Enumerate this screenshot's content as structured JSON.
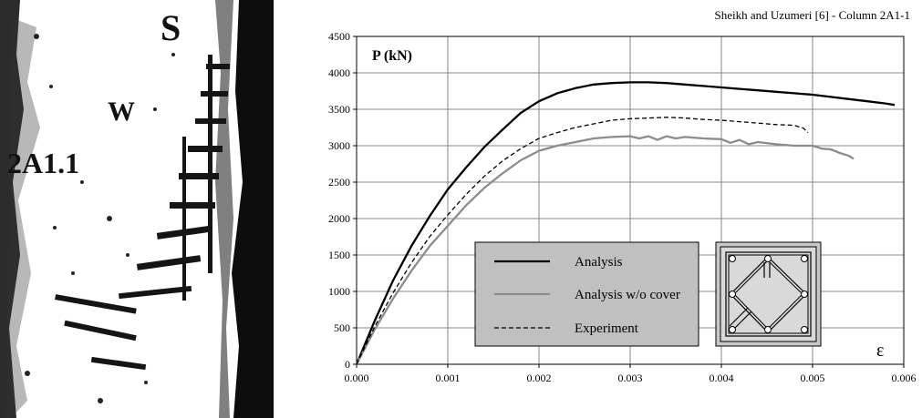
{
  "photo": {
    "labels": [
      "S",
      "W",
      "2A1.1"
    ]
  },
  "chart_data": {
    "type": "line",
    "title": "Sheikh and Uzumeri [6] - Column 2A1-1",
    "ylabel": "P (kN)",
    "xlabel": "ε",
    "xlim": [
      0,
      0.006
    ],
    "ylim": [
      0,
      4500
    ],
    "x_ticks": [
      "0.000",
      "0.001",
      "0.002",
      "0.003",
      "0.004",
      "0.005",
      "0.006"
    ],
    "y_ticks": [
      "0",
      "500",
      "1000",
      "1500",
      "2000",
      "2500",
      "3000",
      "3500",
      "4000",
      "4500"
    ],
    "grid": true,
    "legend_position": "bottom-center",
    "series": [
      {
        "name": "Analysis",
        "color": "#000000",
        "dash": "solid",
        "x": [
          0,
          0.0002,
          0.0004,
          0.0006,
          0.0008,
          0.001,
          0.0012,
          0.0014,
          0.0016,
          0.0018,
          0.002,
          0.0022,
          0.0024,
          0.0026,
          0.0028,
          0.003,
          0.0032,
          0.0034,
          0.0036,
          0.0038,
          0.004,
          0.0042,
          0.0044,
          0.0046,
          0.0048,
          0.005,
          0.0052,
          0.0054,
          0.0056,
          0.0058,
          0.0059
        ],
        "y": [
          0,
          600,
          1150,
          1620,
          2030,
          2400,
          2700,
          2980,
          3220,
          3450,
          3610,
          3720,
          3790,
          3840,
          3860,
          3870,
          3870,
          3860,
          3840,
          3820,
          3800,
          3780,
          3760,
          3740,
          3720,
          3700,
          3670,
          3640,
          3610,
          3580,
          3560
        ]
      },
      {
        "name": "Analysis w/o cover",
        "color": "#8c8c8c",
        "dash": "solid",
        "x": [
          0,
          0.0002,
          0.0004,
          0.0006,
          0.0008,
          0.001,
          0.0012,
          0.0014,
          0.0016,
          0.0018,
          0.002,
          0.0022,
          0.0024,
          0.0026,
          0.0028,
          0.003,
          0.0031,
          0.0032,
          0.0033,
          0.0034,
          0.0035,
          0.0036,
          0.0038,
          0.004,
          0.0041,
          0.0042,
          0.0043,
          0.0044,
          0.0046,
          0.0048,
          0.005,
          0.0051,
          0.0052,
          0.0053,
          0.0054,
          0.00545
        ],
        "y": [
          0,
          480,
          900,
          1280,
          1620,
          1900,
          2180,
          2420,
          2620,
          2800,
          2930,
          3000,
          3050,
          3100,
          3120,
          3130,
          3100,
          3130,
          3080,
          3130,
          3100,
          3120,
          3100,
          3090,
          3040,
          3080,
          3020,
          3050,
          3020,
          3000,
          3000,
          2960,
          2950,
          2900,
          2860,
          2820
        ]
      },
      {
        "name": "Experiment",
        "color": "#000000",
        "dash": "dashed",
        "x": [
          0,
          0.0002,
          0.0004,
          0.0006,
          0.0008,
          0.001,
          0.0012,
          0.0014,
          0.0016,
          0.0018,
          0.002,
          0.0022,
          0.0024,
          0.0026,
          0.0028,
          0.003,
          0.0032,
          0.0034,
          0.0036,
          0.0038,
          0.004,
          0.0042,
          0.0044,
          0.0046,
          0.0048,
          0.0049,
          0.00495
        ],
        "y": [
          0,
          520,
          980,
          1390,
          1750,
          2050,
          2330,
          2580,
          2790,
          2960,
          3100,
          3180,
          3250,
          3300,
          3350,
          3370,
          3380,
          3390,
          3380,
          3360,
          3350,
          3330,
          3310,
          3290,
          3280,
          3240,
          3180
        ]
      }
    ]
  }
}
